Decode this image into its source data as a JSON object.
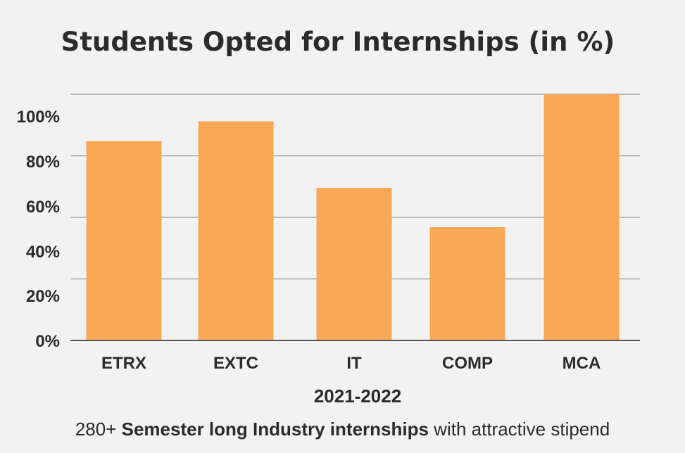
{
  "chart_data": {
    "type": "bar",
    "title": "Students Opted for Internships (in %)",
    "xlabel": "2021-2022",
    "ylabel": "",
    "categories": [
      "ETRX",
      "EXTC",
      "IT",
      "COMP",
      "MCA"
    ],
    "values": [
      81,
      89,
      62,
      46,
      100
    ],
    "ylim": [
      0,
      100
    ],
    "y_tick_labels": [
      "0%",
      "20%",
      "40%",
      "60%",
      "80%",
      "100%"
    ],
    "grid": true,
    "bar_color": "#f9a855",
    "grid_color": "#a6a6a6",
    "legend": "none"
  },
  "footer": {
    "count": "280+",
    "bold_text": "Semester long Industry internships",
    "rest_text": "with attractive stipend"
  }
}
